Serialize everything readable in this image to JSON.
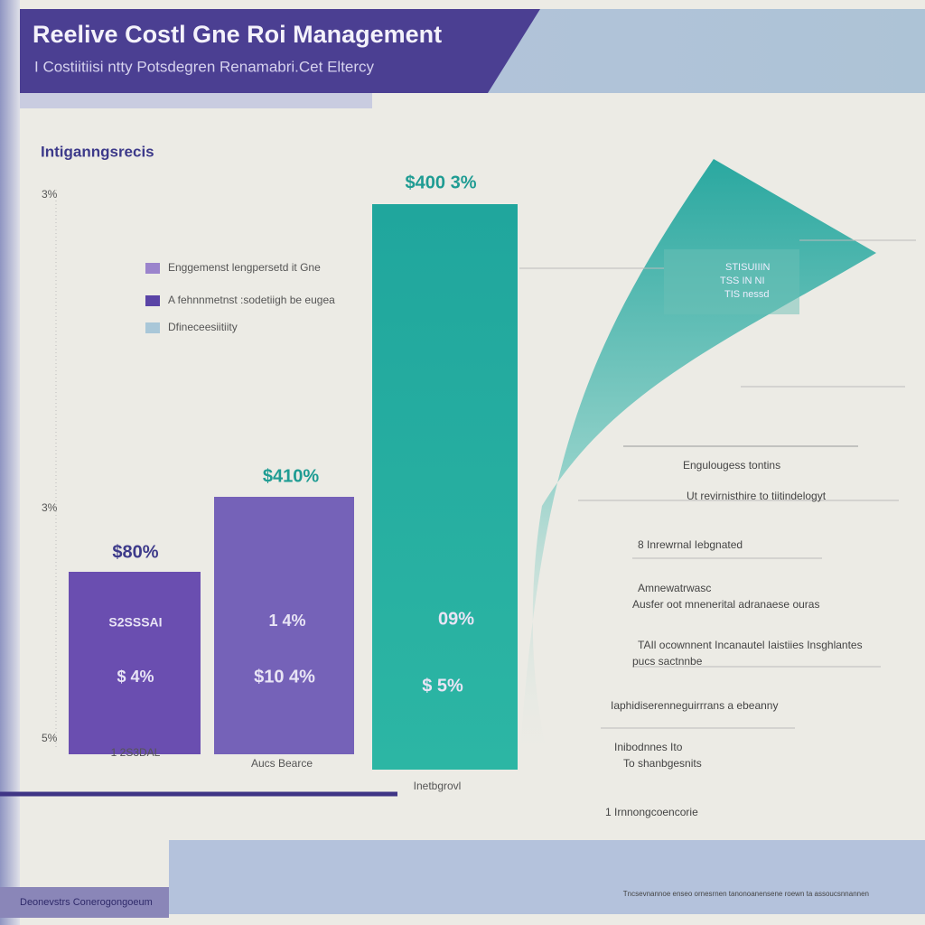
{
  "header": {
    "title": "Reelive Costl Gne  Roi Management",
    "subtitle": "I Costiitiisi ntty Potsdegren Renamabri.Cet Eltercy"
  },
  "chart": {
    "heading": "Intiganngsrecis",
    "axis_labels": [
      "3%",
      "3%",
      "5%"
    ],
    "legend": [
      "Enggemenst lengpersetd it Gne",
      "A fehnnmetnst :sodetiigh be eugea",
      "Dfineceesiitiity"
    ],
    "bars": [
      {
        "top": "$80%",
        "inner": [
          "S2SSSAI",
          "$ 4%"
        ],
        "label": "1 2S3DAL"
      },
      {
        "top": "$410%",
        "inner": [
          "1 4%",
          "$10 4%"
        ],
        "label": "Aucs Bearce"
      },
      {
        "top": "$400 3%",
        "inner": [
          "09%",
          "$ 5%"
        ],
        "label": "Inetbgrovl"
      }
    ]
  },
  "callout": [
    "STISUIIIN",
    "TSS IN NI",
    "TIS nessd"
  ],
  "notes": [
    "Engulougess tontins",
    "Ut revirnisthire to tiitindelogyt",
    "8 Inrewrnal Iebgnated",
    "Amnewatrwasc",
    "Ausfer oot mnenerital adranaese ouras",
    "TAIl ocownnent Incanautel Iaistiies Insghlantes",
    "pucs sactnnbe",
    "Iaphidiserenneguirrrans a ebeanny",
    "Inibodnnes Ito",
    "To shanbgesnits",
    "1 Irnnongcoencorie"
  ],
  "footer": {
    "left": "Deonevstrs Conerogongoeum",
    "right": "Tncsevnannoe enseo ornesrnen tanonoanensene roewn ta assoucsnnannen"
  }
}
